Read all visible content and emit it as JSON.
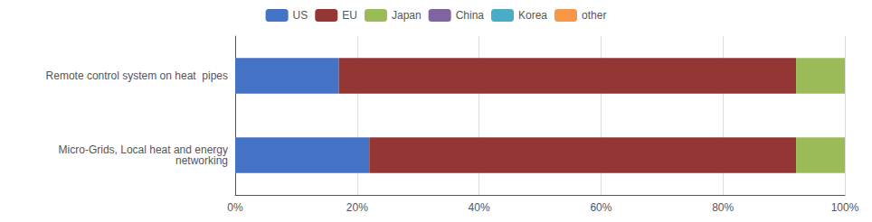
{
  "chart_data": {
    "type": "bar",
    "orientation": "horizontal",
    "stacked": true,
    "categories": [
      "Remote control system on heat  pipes",
      "Micro-Grids, Local heat and energy\nnetworking"
    ],
    "series": [
      {
        "name": "US",
        "color": "#4472C4",
        "values": [
          17,
          22
        ]
      },
      {
        "name": "EU",
        "color": "#943634",
        "values": [
          75,
          70
        ]
      },
      {
        "name": "Japan",
        "color": "#9BBB59",
        "values": [
          8,
          8
        ]
      },
      {
        "name": "China",
        "color": "#8064A2",
        "values": [
          0,
          0
        ]
      },
      {
        "name": "Korea",
        "color": "#4BACC6",
        "values": [
          0,
          0
        ]
      },
      {
        "name": "other",
        "color": "#F79646",
        "values": [
          0,
          0
        ]
      }
    ],
    "xlim": [
      0,
      100
    ],
    "xticks": [
      {
        "value": 0,
        "label": "0%"
      },
      {
        "value": 20,
        "label": "20%"
      },
      {
        "value": 40,
        "label": "40%"
      },
      {
        "value": 60,
        "label": "60%"
      },
      {
        "value": 80,
        "label": "80%"
      },
      {
        "value": 100,
        "label": "100%"
      }
    ],
    "grid": true,
    "legend": "top"
  }
}
